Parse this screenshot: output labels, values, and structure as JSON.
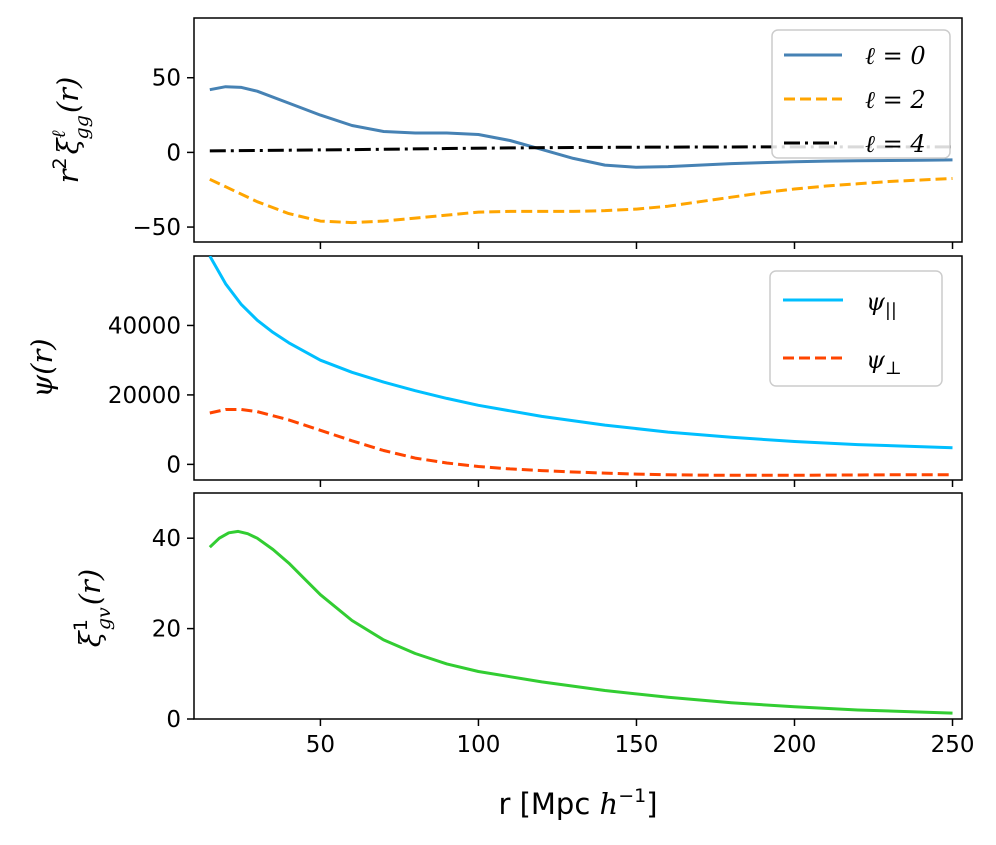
{
  "chart_data": [
    {
      "type": "line",
      "panel": "top",
      "ylabel": "r²ξℓgg(r)",
      "ylabel_parts": {
        "base": "r",
        "sup1": "2",
        "xi": "ξ",
        "sup": "ℓ",
        "sub": "gg",
        "arg": "(r)"
      },
      "xlim": [
        10,
        253
      ],
      "ylim": [
        -60,
        90
      ],
      "yticks": [
        -50,
        0,
        50
      ],
      "ytick_labels": [
        "−50",
        "0",
        "50"
      ],
      "legend_position": "top-right",
      "series": [
        {
          "name": "ℓ = 0",
          "color": "#4682b4",
          "style": "solid",
          "x": [
            15,
            20,
            25,
            30,
            40,
            50,
            60,
            70,
            80,
            90,
            100,
            110,
            120,
            130,
            140,
            150,
            160,
            170,
            180,
            190,
            200,
            210,
            220,
            230,
            240,
            250
          ],
          "y": [
            42,
            44,
            43.5,
            41,
            33,
            25,
            18,
            14,
            13,
            13,
            12,
            8,
            2,
            -4,
            -8.5,
            -10,
            -9.5,
            -8.5,
            -7.5,
            -6.8,
            -6.2,
            -5.8,
            -5.6,
            -5.4,
            -5.2,
            -5
          ]
        },
        {
          "name": "ℓ = 2",
          "color": "#ffa500",
          "style": "dashed",
          "x": [
            15,
            20,
            30,
            40,
            50,
            60,
            70,
            80,
            90,
            100,
            110,
            120,
            130,
            140,
            150,
            160,
            170,
            180,
            190,
            200,
            210,
            220,
            230,
            240,
            250
          ],
          "y": [
            -18,
            -23,
            -33,
            -41,
            -46,
            -47,
            -46,
            -44,
            -42,
            -40,
            -39.5,
            -39.5,
            -39.5,
            -39,
            -38,
            -36,
            -33,
            -30,
            -27,
            -24.5,
            -22.5,
            -21,
            -19.5,
            -18.5,
            -17.5
          ]
        },
        {
          "name": "ℓ = 4",
          "color": "#000000",
          "style": "dashdot",
          "x": [
            15,
            30,
            50,
            70,
            90,
            110,
            130,
            150,
            170,
            190,
            210,
            230,
            250
          ],
          "y": [
            1,
            1.3,
            1.7,
            2.1,
            2.6,
            3,
            3.3,
            3.5,
            3.6,
            3.7,
            3.7,
            3.7,
            3.7
          ]
        }
      ],
      "legend_labels": {
        "l0": "ℓ = 0",
        "l2": "ℓ = 2",
        "l4": "ℓ = 4"
      }
    },
    {
      "type": "line",
      "panel": "middle",
      "ylabel": "ψ(r)",
      "xlim": [
        10,
        253
      ],
      "ylim": [
        -4500,
        60000
      ],
      "yticks": [
        0,
        20000,
        40000
      ],
      "ytick_labels": [
        "0",
        "20000",
        "40000"
      ],
      "legend_position": "top-right",
      "series": [
        {
          "name": "ψ||",
          "color": "#00bfff",
          "style": "solid",
          "x": [
            15,
            20,
            25,
            30,
            35,
            40,
            50,
            60,
            70,
            80,
            90,
            100,
            120,
            140,
            160,
            180,
            200,
            220,
            250
          ],
          "y": [
            60000,
            52000,
            46000,
            41500,
            38000,
            35000,
            30000,
            26500,
            23700,
            21200,
            19000,
            17000,
            13800,
            11300,
            9300,
            7800,
            6600,
            5700,
            4800
          ]
        },
        {
          "name": "ψ⊥",
          "color": "#ff4500",
          "style": "dashed",
          "x": [
            15,
            20,
            25,
            30,
            40,
            50,
            60,
            70,
            80,
            90,
            100,
            110,
            120,
            130,
            140,
            150,
            160,
            170,
            180,
            190,
            200,
            210,
            220,
            230,
            240,
            250
          ],
          "y": [
            14800,
            15800,
            15800,
            15200,
            12800,
            9800,
            6800,
            4000,
            1800,
            400,
            -600,
            -1300,
            -1800,
            -2200,
            -2500,
            -2800,
            -3000,
            -3100,
            -3150,
            -3150,
            -3150,
            -3100,
            -3050,
            -3000,
            -3000,
            -3000
          ]
        }
      ],
      "legend_labels": {
        "par": "ψ",
        "par_sub": "||",
        "perp": "ψ",
        "perp_sub": "⊥"
      }
    },
    {
      "type": "line",
      "panel": "bottom",
      "ylabel": "ξ1gv(r)",
      "ylabel_parts": {
        "xi": "ξ",
        "sup": "1",
        "sub": "gv",
        "arg": "(r)"
      },
      "xlabel": "r [Mpc h⁻¹]",
      "xlabel_parts": {
        "pre": "r [Mpc ",
        "h": "h",
        "sup": "−1",
        "post": "]"
      },
      "xlim": [
        10,
        253
      ],
      "ylim": [
        0,
        50
      ],
      "xticks": [
        50,
        100,
        150,
        200,
        250
      ],
      "xtick_labels": [
        "50",
        "100",
        "150",
        "200",
        "250"
      ],
      "yticks": [
        0,
        20,
        40
      ],
      "ytick_labels": [
        "0",
        "20",
        "40"
      ],
      "series": [
        {
          "name": "ξ1gv",
          "color": "#32cd32",
          "style": "solid",
          "x": [
            15,
            18,
            21,
            24,
            27,
            30,
            35,
            40,
            45,
            50,
            60,
            70,
            80,
            90,
            100,
            120,
            140,
            160,
            180,
            200,
            220,
            250
          ],
          "y": [
            38,
            40,
            41.2,
            41.5,
            41,
            40,
            37.5,
            34.5,
            31,
            27.5,
            21.8,
            17.5,
            14.5,
            12.2,
            10.5,
            8.2,
            6.3,
            4.8,
            3.6,
            2.7,
            2,
            1.3
          ]
        }
      ]
    }
  ]
}
